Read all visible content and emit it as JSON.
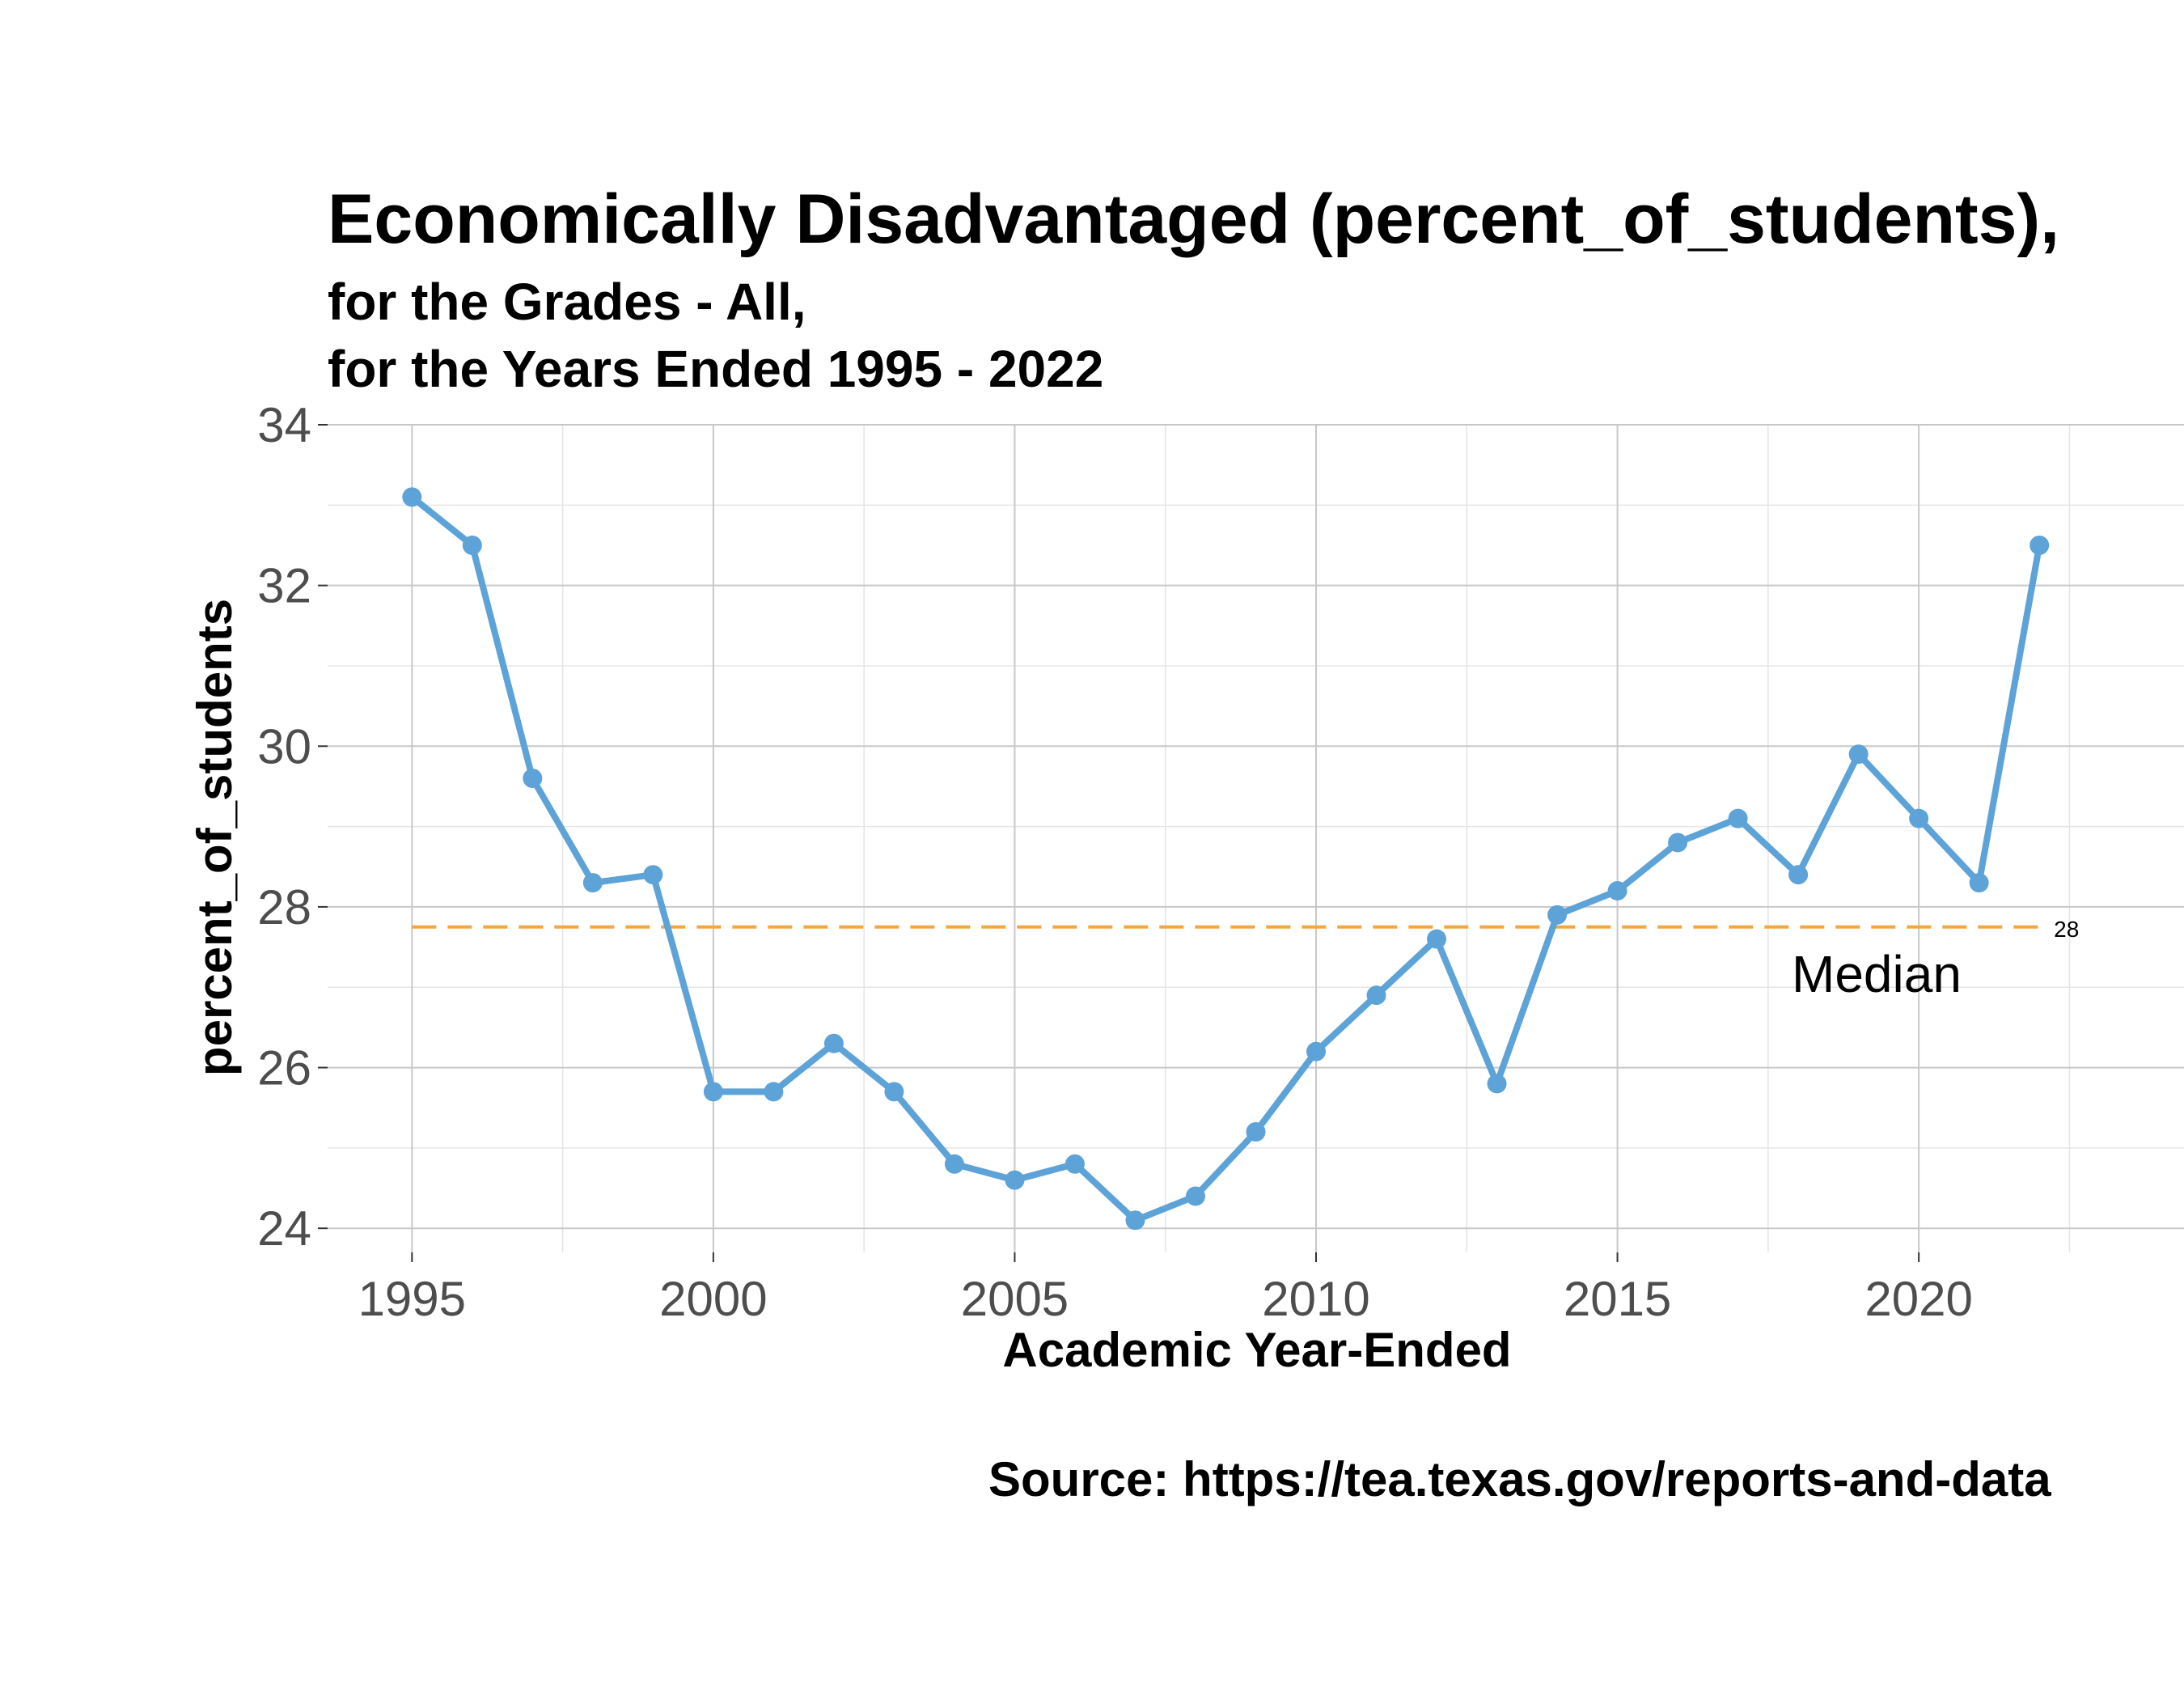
{
  "chart_data": {
    "type": "line",
    "title": "Economically Disadvantaged (percent_of_students),",
    "subtitle_lines": [
      "for the Grades - All,",
      "for the Years Ended 1995  -  2022"
    ],
    "xlabel": "Academic Year-Ended",
    "ylabel": "percent_of_students",
    "caption": "Source:  https://tea.texas.gov/reports-and-data",
    "xlim": [
      1993.6,
      2024.4
    ],
    "ylim": [
      23.7,
      34.0
    ],
    "x_ticks": [
      1995,
      2000,
      2005,
      2010,
      2015,
      2020
    ],
    "y_ticks": [
      24,
      26,
      28,
      30,
      32,
      34
    ],
    "grid": true,
    "series": [
      {
        "color": "#5ea3d8",
        "x": [
          1995,
          1996,
          1997,
          1998,
          1999,
          2000,
          2001,
          2002,
          2003,
          2004,
          2005,
          2006,
          2007,
          2008,
          2009,
          2010,
          2011,
          2012,
          2013,
          2014,
          2015,
          2016,
          2017,
          2018,
          2019,
          2020,
          2021,
          2022
        ],
        "y": [
          33.1,
          32.5,
          29.6,
          28.3,
          28.4,
          25.7,
          25.7,
          26.3,
          25.7,
          24.8,
          24.6,
          24.8,
          24.1,
          24.4,
          25.2,
          26.2,
          26.9,
          27.6,
          25.8,
          27.9,
          28.2,
          28.8,
          29.1,
          28.4,
          29.9,
          29.1,
          28.3,
          32.5
        ]
      }
    ],
    "median": {
      "value": 27.75,
      "label": "Median",
      "value_label": "28",
      "color": "#f4a640",
      "x_start": 1995,
      "x_end": 2022
    }
  }
}
